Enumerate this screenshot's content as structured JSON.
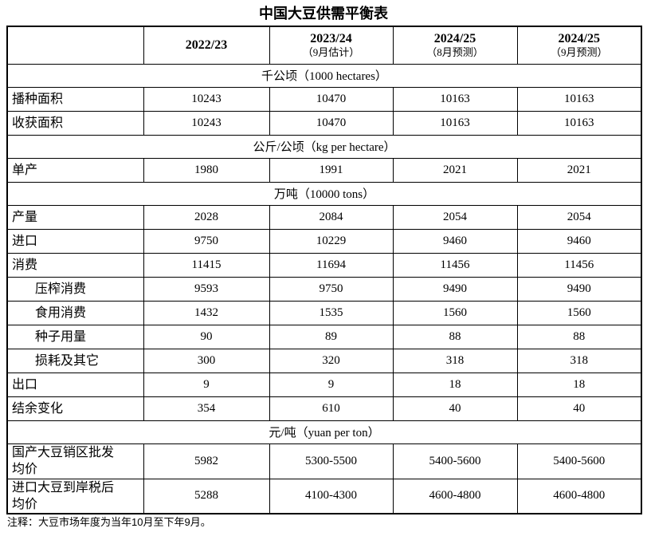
{
  "title": "中国大豆供需平衡表",
  "note": "注释：大豆市场年度为当年10月至下年9月。",
  "table": {
    "header": {
      "cols": [
        {
          "year": "2022/23",
          "sub": ""
        },
        {
          "year": "2023/24",
          "sub": "（9月估计）"
        },
        {
          "year": "2024/25",
          "sub": "（8月预测）"
        },
        {
          "year": "2024/25",
          "sub": "（9月预测）"
        }
      ]
    },
    "rows": [
      {
        "type": "section",
        "label": "千公顷（1000 hectares）"
      },
      {
        "type": "data",
        "label": "播种面积",
        "values": [
          "10243",
          "10470",
          "10163",
          "10163"
        ]
      },
      {
        "type": "data",
        "label": "收获面积",
        "values": [
          "10243",
          "10470",
          "10163",
          "10163"
        ]
      },
      {
        "type": "section",
        "label": "公斤/公顷（kg per hectare）"
      },
      {
        "type": "data",
        "label": "单产",
        "values": [
          "1980",
          "1991",
          "2021",
          "2021"
        ]
      },
      {
        "type": "section",
        "label": "万吨（10000 tons）"
      },
      {
        "type": "data",
        "label": "产量",
        "values": [
          "2028",
          "2084",
          "2054",
          "2054"
        ]
      },
      {
        "type": "data",
        "label": "进口",
        "values": [
          "9750",
          "10229",
          "9460",
          "9460"
        ]
      },
      {
        "type": "data",
        "label": "消费",
        "values": [
          "11415",
          "11694",
          "11456",
          "11456"
        ]
      },
      {
        "type": "data",
        "indent": true,
        "label": "压榨消费",
        "values": [
          "9593",
          "9750",
          "9490",
          "9490"
        ]
      },
      {
        "type": "data",
        "indent": true,
        "label": "食用消费",
        "values": [
          "1432",
          "1535",
          "1560",
          "1560"
        ]
      },
      {
        "type": "data",
        "indent": true,
        "label": "种子用量",
        "values": [
          "90",
          "89",
          "88",
          "88"
        ]
      },
      {
        "type": "data",
        "indent": true,
        "label": "损耗及其它",
        "values": [
          "300",
          "320",
          "318",
          "318"
        ]
      },
      {
        "type": "data",
        "label": "出口",
        "values": [
          "9",
          "9",
          "18",
          "18"
        ]
      },
      {
        "type": "data",
        "label": "结余变化",
        "values": [
          "354",
          "610",
          "40",
          "40"
        ]
      },
      {
        "type": "section",
        "label": "元/吨（yuan per ton）"
      },
      {
        "type": "price",
        "label": "国产大豆销区批发\n均价",
        "values": [
          "5982",
          "5300-5500",
          "5400-5600",
          "5400-5600"
        ]
      },
      {
        "type": "price",
        "label": "进口大豆到岸税后\n均价",
        "values": [
          "5288",
          "4100-4300",
          "4600-4800",
          "4600-4800"
        ]
      }
    ]
  }
}
